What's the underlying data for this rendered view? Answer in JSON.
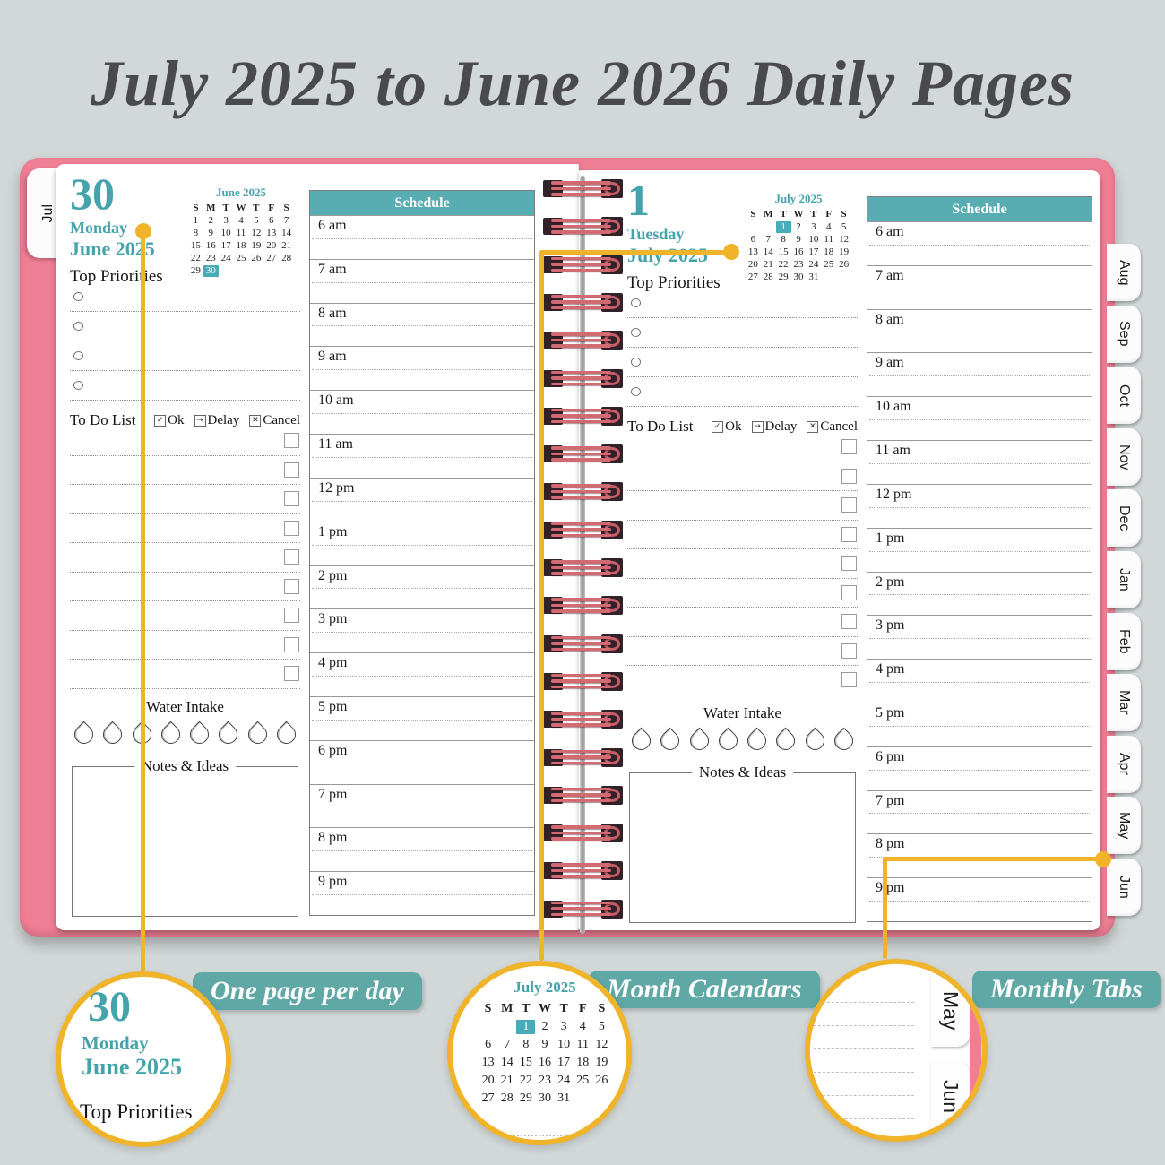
{
  "title": "July 2025 to June 2026 Daily Pages",
  "colors": {
    "background": "#d2d7d8",
    "cover_pink": "#f07e95",
    "teal_text": "#45a3ab",
    "teal_header": "#57adb2",
    "teal_label": "#5fa8a5",
    "calendar_highlight": "#45acb8",
    "callout_yellow": "#f0b42a",
    "title_gray": "#4a4a4c"
  },
  "tabs": {
    "left": "Jul",
    "right": [
      "Aug",
      "Sep",
      "Oct",
      "Nov",
      "Dec",
      "Jan",
      "Feb",
      "Mar",
      "Apr",
      "May",
      "Jun"
    ]
  },
  "left_page": {
    "day": "30",
    "weekday": "Monday",
    "month_year": "June 2025",
    "calendar": {
      "title": "June 2025",
      "weekdays": [
        "S",
        "M",
        "T",
        "W",
        "T",
        "F",
        "S"
      ],
      "weeks": [
        [
          "1",
          "2",
          "3",
          "4",
          "5",
          "6",
          "7"
        ],
        [
          "8",
          "9",
          "10",
          "11",
          "12",
          "13",
          "14"
        ],
        [
          "15",
          "16",
          "17",
          "18",
          "19",
          "20",
          "21"
        ],
        [
          "22",
          "23",
          "24",
          "25",
          "26",
          "27",
          "28"
        ],
        [
          "29",
          "30",
          "",
          "",
          "",
          "",
          ""
        ]
      ],
      "highlight": "30"
    },
    "top_priorities_label": "Top Priorities",
    "priority_rows": 4,
    "todo": {
      "label": "To Do List",
      "rows": 9,
      "legend": [
        {
          "glyph": "✓",
          "text": "Ok"
        },
        {
          "glyph": "→",
          "text": "Delay"
        },
        {
          "glyph": "✕",
          "text": "Cancel"
        }
      ]
    },
    "water_label": "Water Intake",
    "water_drops": 8,
    "notes_label": "Notes & Ideas",
    "schedule": {
      "header": "Schedule",
      "times": [
        "6 am",
        "7 am",
        "8 am",
        "9 am",
        "10 am",
        "11 am",
        "12 pm",
        "1 pm",
        "2 pm",
        "3 pm",
        "4 pm",
        "5 pm",
        "6 pm",
        "7 pm",
        "8 pm",
        "9 pm"
      ]
    }
  },
  "right_page": {
    "day": "1",
    "weekday": "Tuesday",
    "month_year": "July 2025",
    "calendar": {
      "title": "July 2025",
      "weekdays": [
        "S",
        "M",
        "T",
        "W",
        "T",
        "F",
        "S"
      ],
      "weeks": [
        [
          "",
          "",
          "1",
          "2",
          "3",
          "4",
          "5"
        ],
        [
          "6",
          "7",
          "8",
          "9",
          "10",
          "11",
          "12"
        ],
        [
          "13",
          "14",
          "15",
          "16",
          "17",
          "18",
          "19"
        ],
        [
          "20",
          "21",
          "22",
          "23",
          "24",
          "25",
          "26"
        ],
        [
          "27",
          "28",
          "29",
          "30",
          "31",
          "",
          ""
        ]
      ],
      "highlight": "1"
    },
    "top_priorities_label": "Top Priorities",
    "priority_rows": 4,
    "todo": {
      "label": "To Do List",
      "rows": 9,
      "legend": [
        {
          "glyph": "✓",
          "text": "Ok"
        },
        {
          "glyph": "→",
          "text": "Delay"
        },
        {
          "glyph": "✕",
          "text": "Cancel"
        }
      ]
    },
    "water_label": "Water Intake",
    "water_drops": 8,
    "notes_label": "Notes & Ideas",
    "schedule": {
      "header": "Schedule",
      "times": [
        "6 am",
        "7 am",
        "8 am",
        "9 am",
        "10 am",
        "11 am",
        "12 pm",
        "1 pm",
        "2 pm",
        "3 pm",
        "4 pm",
        "5 pm",
        "6 pm",
        "7 pm",
        "8 pm",
        "9 pm"
      ]
    }
  },
  "callouts": {
    "one_page": {
      "label": "One page per day",
      "day": "30",
      "weekday": "Monday",
      "month_year": "June 2025",
      "caption": "Top Priorities"
    },
    "month_calendars": {
      "label": "Month Calendars",
      "calendar": {
        "title": "July 2025",
        "weekdays": [
          "S",
          "M",
          "T",
          "W",
          "T",
          "F",
          "S"
        ],
        "weeks": [
          [
            "",
            "",
            "1",
            "2",
            "3",
            "4",
            "5"
          ],
          [
            "6",
            "7",
            "8",
            "9",
            "10",
            "11",
            "12"
          ],
          [
            "13",
            "14",
            "15",
            "16",
            "17",
            "18",
            "19"
          ],
          [
            "20",
            "21",
            "22",
            "23",
            "24",
            "25",
            "26"
          ],
          [
            "27",
            "28",
            "29",
            "30",
            "31",
            "",
            ""
          ]
        ],
        "highlight": "1"
      }
    },
    "monthly_tabs": {
      "label": "Monthly Tabs",
      "tabs": [
        "May",
        "Jun"
      ]
    }
  }
}
